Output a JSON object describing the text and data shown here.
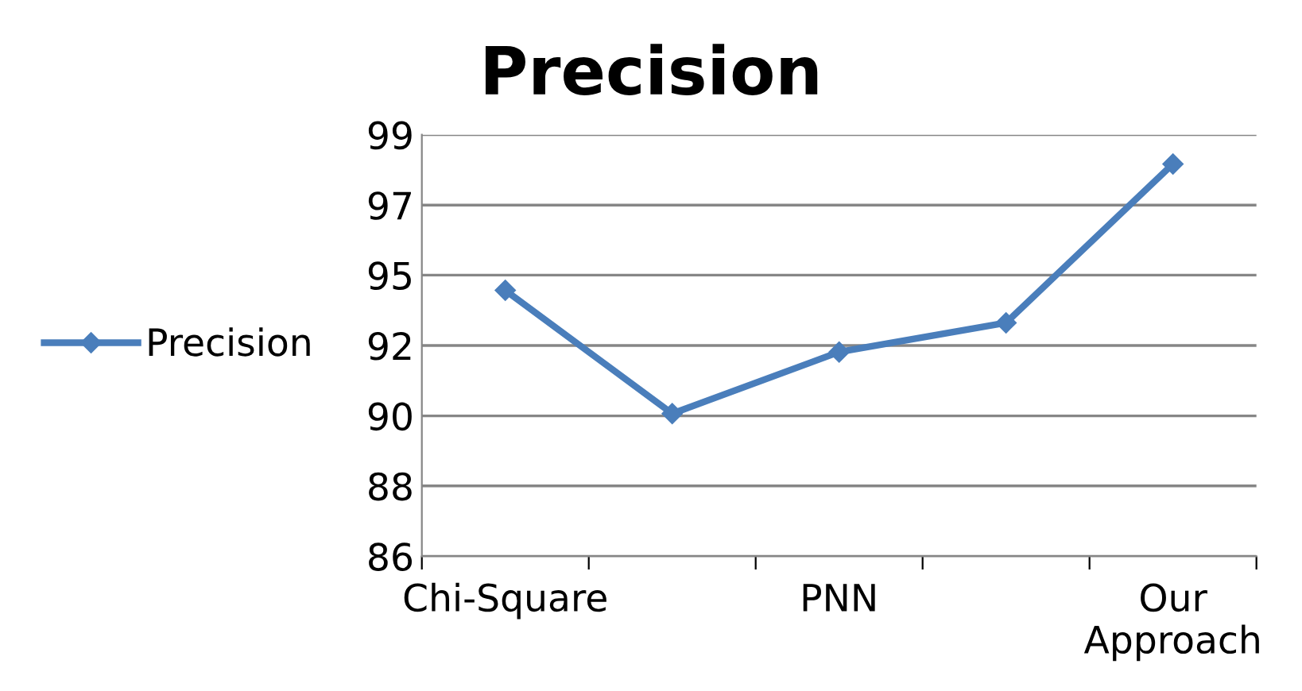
{
  "chart_data": {
    "type": "line",
    "title": "Precision",
    "categories": [
      "Chi-Square",
      null,
      "PNN",
      null,
      "Our Approach"
    ],
    "series": [
      {
        "name": "Precision",
        "color": "#4a7ebb",
        "values": [
          94.2,
          90.4,
          92.3,
          93.2,
          98.1
        ]
      }
    ],
    "ylim": [
      86,
      99
    ],
    "yticks": [
      86,
      {
        "value": 88.17,
        "label": "88"
      },
      {
        "value": 90.33,
        "label": "90"
      },
      {
        "value": 92.5,
        "label": "92"
      },
      {
        "value": 94.67,
        "label": "95"
      },
      {
        "value": 96.83,
        "label": "97"
      },
      99
    ],
    "grid": "y",
    "legend": "left",
    "marker": "diamond",
    "line_style": "solid"
  }
}
